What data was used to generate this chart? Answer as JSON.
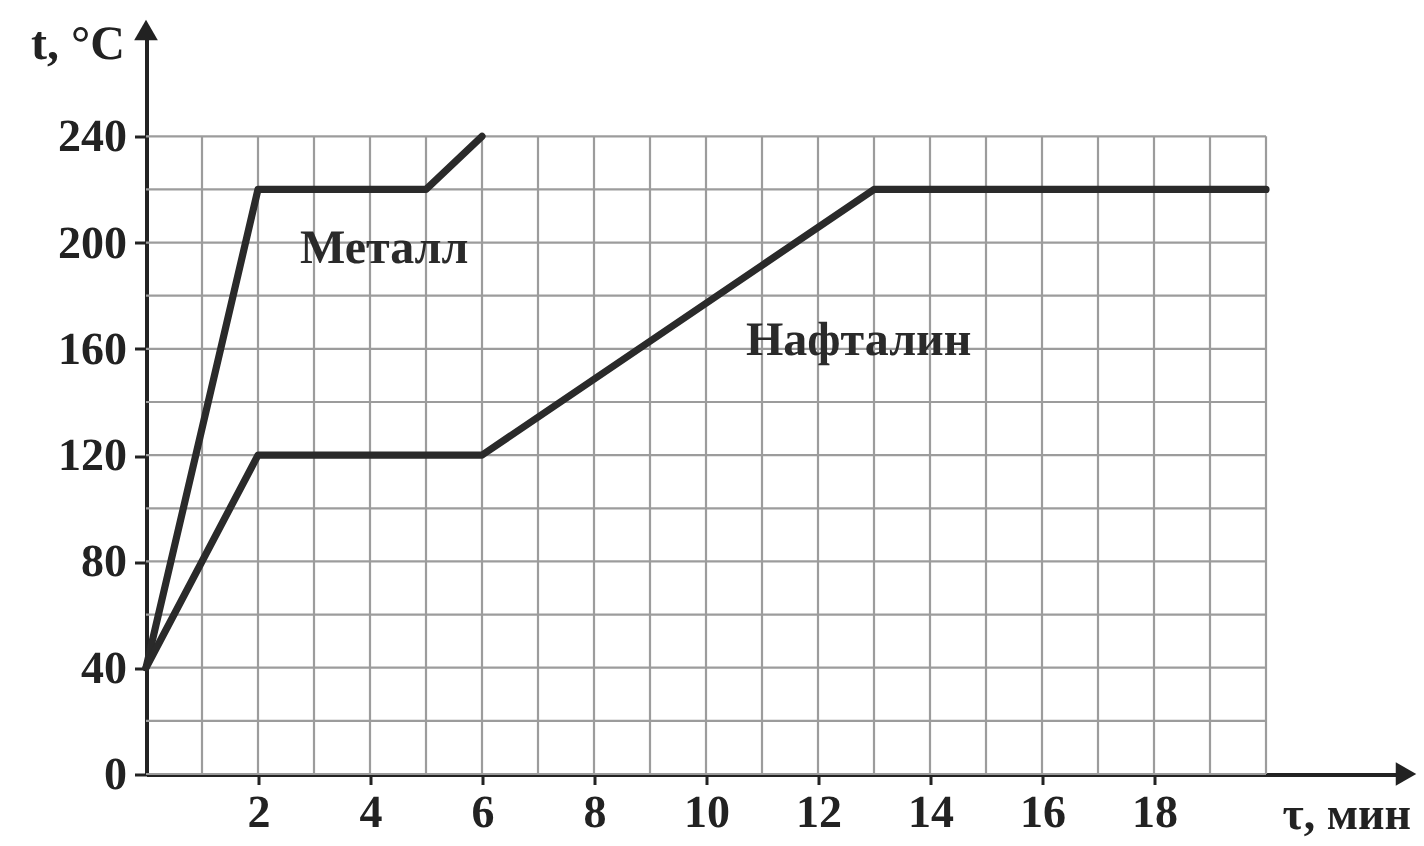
{
  "chart_data": {
    "type": "line",
    "xlabel": "τ, мин",
    "ylabel": "t, °C",
    "xlim": [
      0,
      22.5
    ],
    "ylim": [
      0,
      280
    ],
    "xticks": [
      {
        "value": 1,
        "label": null
      },
      2,
      {
        "value": 3,
        "label": null
      },
      4,
      {
        "value": 5,
        "label": null
      },
      6,
      {
        "value": 7,
        "label": null
      },
      8,
      {
        "value": 9,
        "label": null
      },
      10,
      {
        "value": 11,
        "label": null
      },
      12,
      {
        "value": 13,
        "label": null
      },
      14,
      {
        "value": 15,
        "label": null
      },
      16,
      {
        "value": 17,
        "label": null
      },
      18,
      {
        "value": 19,
        "label": null
      },
      {
        "value": 20,
        "label": null
      }
    ],
    "yticks": [
      0,
      {
        "value": 20,
        "label": null
      },
      40,
      {
        "value": 60,
        "label": null
      },
      80,
      {
        "value": 100,
        "label": null
      },
      120,
      {
        "value": 140,
        "label": null
      },
      160,
      {
        "value": 180,
        "label": null
      },
      200,
      {
        "value": 220,
        "label": null
      },
      240
    ],
    "grid": true,
    "legend": false,
    "marker": "none",
    "line_style": "solid",
    "series": [
      {
        "name": "Металл",
        "color": "#2a2a2a",
        "x": [
          0,
          2,
          5,
          6
        ],
        "values": [
          40,
          220,
          220,
          240
        ]
      },
      {
        "name": "Нафталин",
        "color": "#2a2a2a",
        "x": [
          0,
          2,
          6,
          13,
          20
        ],
        "values": [
          40,
          120,
          120,
          220,
          220
        ]
      }
    ]
  }
}
